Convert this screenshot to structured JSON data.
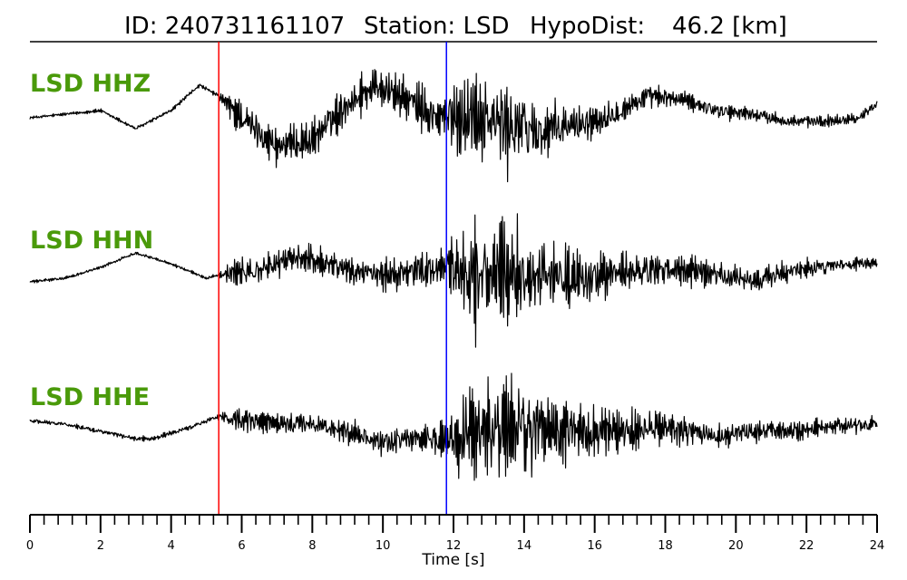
{
  "chart_data": {
    "type": "line",
    "title_parts": [
      "ID: 240731161107",
      "Station: LSD",
      "HypoDist:",
      "46.2 [km]"
    ],
    "xlabel": "Time [s]",
    "xlim": [
      0,
      24
    ],
    "major_ticks": [
      0,
      2,
      4,
      6,
      8,
      10,
      12,
      14,
      16,
      18,
      20,
      22,
      24
    ],
    "minor_tick_step": 0.4,
    "grid": false,
    "legend": "none",
    "channel_label_color": "#4a9a0a",
    "p_pick": {
      "time": 5.35,
      "color": "#ff0000"
    },
    "s_pick": {
      "time": 11.8,
      "color": "#0000ff"
    },
    "trace_color": "#000000",
    "series": [
      {
        "name": "LSD HHZ",
        "knots_t": [
          0,
          1,
          2,
          3,
          4,
          4.8,
          5.35,
          6,
          7,
          8,
          9,
          9.8,
          10.5,
          11.5,
          12.5,
          13.5,
          14.5,
          15.5,
          16.5,
          17.5,
          18.5,
          19.5,
          20.5,
          21.5,
          22.5,
          23.5,
          24
        ],
        "knots_v": [
          0,
          0.05,
          0.1,
          -0.15,
          0.1,
          0.45,
          0.3,
          0.0,
          -0.4,
          -0.3,
          0.2,
          0.45,
          0.3,
          0.0,
          0.05,
          -0.1,
          -0.2,
          -0.1,
          0.05,
          0.3,
          0.25,
          0.1,
          0.05,
          -0.05,
          -0.05,
          0.0,
          0.2
        ],
        "noise_t": [
          0,
          5.3,
          5.8,
          9.5,
          11.8,
          12.3,
          13.8,
          15.5,
          18,
          24
        ],
        "noise_a": [
          0.03,
          0.04,
          0.38,
          0.35,
          0.5,
          0.85,
          0.9,
          0.4,
          0.18,
          0.1
        ]
      },
      {
        "name": "LSD HHN",
        "knots_t": [
          0,
          1,
          2,
          3,
          4,
          5,
          5.35,
          6.5,
          7.5,
          8.5,
          9.5,
          10.5,
          11.8,
          12.5,
          13.5,
          14.5,
          15.5,
          16.5,
          17.5,
          18.5,
          19.5,
          20.5,
          21.5,
          22.5,
          23.5,
          24
        ],
        "knots_v": [
          -0.1,
          -0.05,
          0.1,
          0.3,
          0.15,
          -0.05,
          0.0,
          0.05,
          0.25,
          0.15,
          0.0,
          0.0,
          0.1,
          0.0,
          0.0,
          0.0,
          -0.05,
          0.0,
          0.05,
          0.05,
          0.0,
          -0.1,
          0.05,
          0.1,
          0.15,
          0.15
        ],
        "noise_t": [
          0,
          5.3,
          5.8,
          8.5,
          11.8,
          12.3,
          14.2,
          16,
          20,
          24
        ],
        "noise_a": [
          0.03,
          0.03,
          0.25,
          0.3,
          0.35,
          0.95,
          0.85,
          0.45,
          0.25,
          0.12
        ]
      },
      {
        "name": "LSD HHE",
        "knots_t": [
          0,
          1,
          2,
          3,
          3.5,
          4.5,
          5.3,
          6,
          7,
          8,
          9,
          10,
          11,
          11.8,
          12.5,
          13.5,
          14.5,
          15.5,
          16.5,
          17.5,
          18.5,
          19.5,
          20.5,
          21.5,
          22.5,
          23.5,
          24
        ],
        "knots_v": [
          0.15,
          0.1,
          0.0,
          -0.1,
          -0.1,
          0.05,
          0.2,
          0.15,
          0.1,
          0.1,
          0.0,
          -0.15,
          -0.1,
          -0.1,
          0.0,
          0.0,
          0.0,
          0.0,
          0.0,
          0.05,
          0.0,
          -0.05,
          0.0,
          0.0,
          0.05,
          0.1,
          0.1
        ],
        "noise_t": [
          0,
          5.3,
          5.8,
          8.5,
          11.8,
          12.3,
          14.0,
          15.8,
          19,
          24
        ],
        "noise_a": [
          0.04,
          0.05,
          0.22,
          0.22,
          0.3,
          1.0,
          0.95,
          0.5,
          0.25,
          0.15
        ]
      }
    ]
  }
}
